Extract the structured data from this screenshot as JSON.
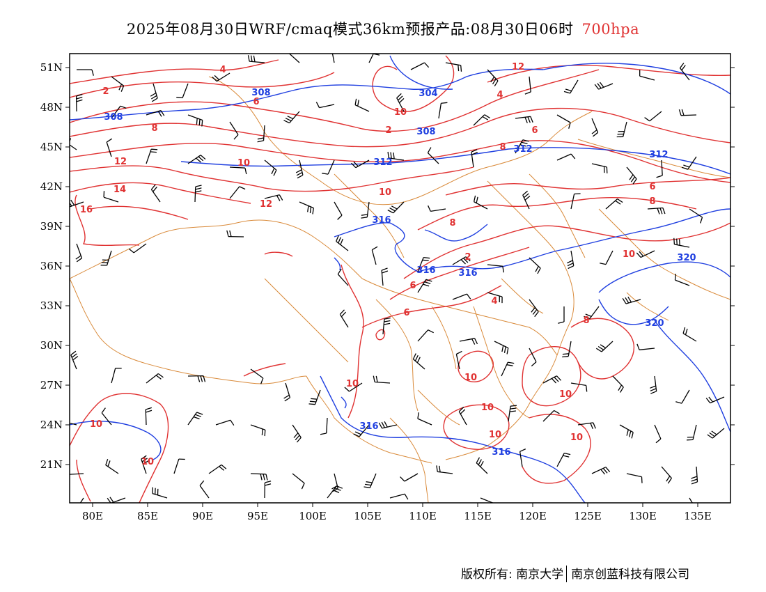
{
  "title": {
    "main": "2025年08月30日WRF/cmaq模式36km预报产品:08月30日06时",
    "level": "700hpa"
  },
  "map": {
    "lon_range": [
      78,
      138
    ],
    "lat_range": [
      18.5,
      52.5
    ],
    "lat_ticks": [
      "51N",
      "48N",
      "45N",
      "42N",
      "39N",
      "36N",
      "33N",
      "30N",
      "27N",
      "24N",
      "21N"
    ],
    "lon_ticks": [
      "80E",
      "85E",
      "90E",
      "95E",
      "100E",
      "105E",
      "110E",
      "115E",
      "120E",
      "125E",
      "130E",
      "135E"
    ],
    "colors": {
      "temperature_contour": "#e03232",
      "height_contour": "#1f3fe0",
      "boundaries": "#d98a3a",
      "wind_barbs": "#000000"
    },
    "height_labels": [
      "308",
      "304",
      "308",
      "308",
      "312",
      "312",
      "312",
      "316",
      "316",
      "316",
      "316",
      "316",
      "320",
      "320"
    ],
    "temperature_labels": [
      "2",
      "4",
      "6",
      "8",
      "2",
      "4",
      "6",
      "8",
      "10",
      "14",
      "16",
      "12",
      "10",
      "6",
      "8",
      "8",
      "10",
      "2",
      "6",
      "4",
      "6",
      "8",
      "10",
      "10",
      "10",
      "10",
      "10",
      "10",
      "10",
      "10",
      "12",
      "12",
      "10"
    ]
  },
  "footer": {
    "copyright": "版权所有: 南京大学",
    "company": "南京创蓝科技有限公司"
  }
}
